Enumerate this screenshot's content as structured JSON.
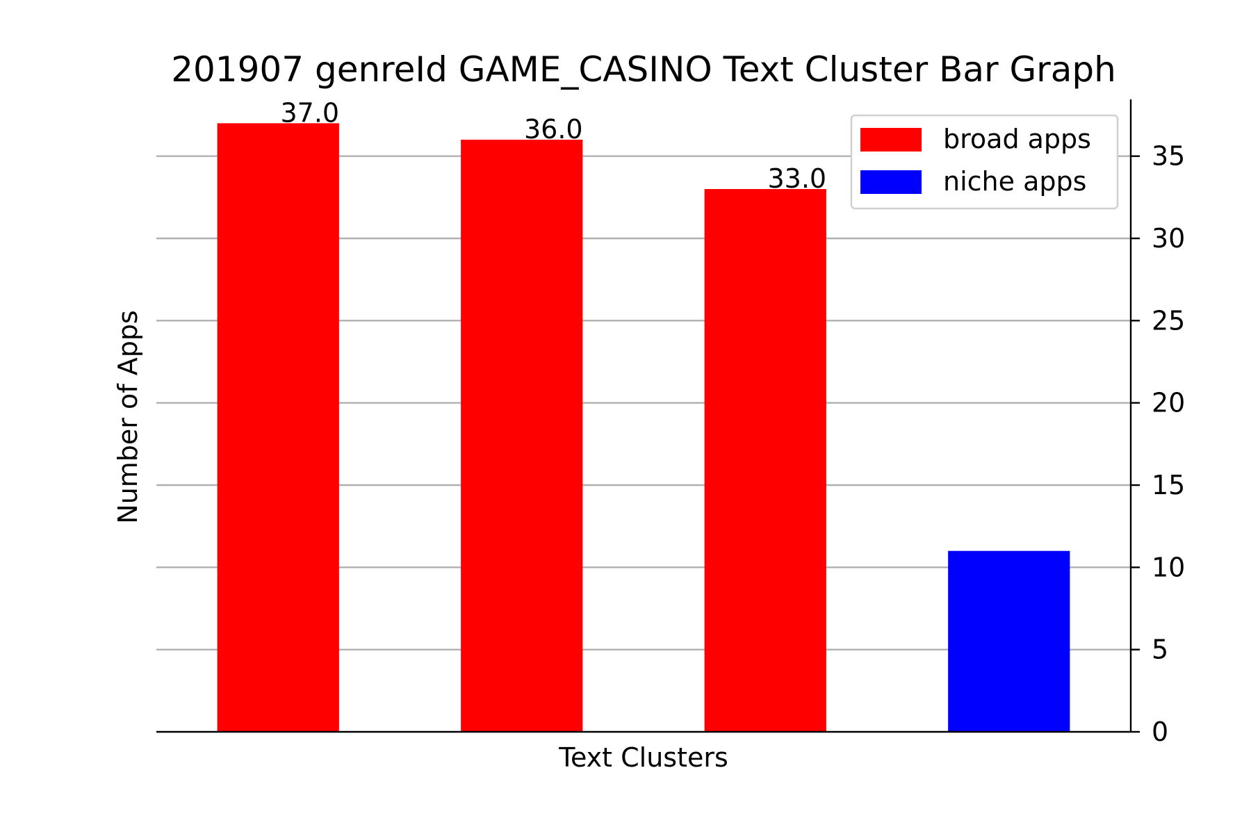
{
  "chart_data": {
    "type": "bar",
    "title": "201907 genreId GAME_CASINO Text Cluster Bar Graph",
    "xlabel": "Text Clusters",
    "ylabel": "Number of Apps",
    "ylim": [
      0,
      39
    ],
    "yticks": [
      0,
      5,
      10,
      15,
      20,
      25,
      30,
      35
    ],
    "y_axis_side": "right",
    "grid": "horizontal",
    "legend_position": "top-right",
    "bars": [
      {
        "value": 37,
        "series": "broad apps",
        "label": "37.0"
      },
      {
        "value": 36,
        "series": "broad apps",
        "label": "36.0"
      },
      {
        "value": 33,
        "series": "broad apps",
        "label": "33.0"
      },
      {
        "value": 11,
        "series": "niche apps",
        "label": ""
      }
    ],
    "series": [
      {
        "name": "broad apps",
        "color": "#ff0000"
      },
      {
        "name": "niche apps",
        "color": "#0000ff"
      }
    ]
  }
}
